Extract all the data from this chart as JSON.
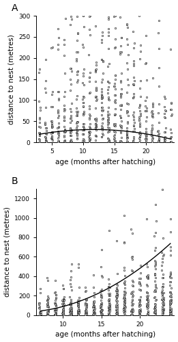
{
  "panel_A": {
    "label": "A",
    "xlim": [
      2.5,
      24.5
    ],
    "ylim": [
      0,
      300
    ],
    "yticks": [
      0,
      50,
      100,
      150,
      200,
      250,
      300
    ],
    "xticks": [
      5,
      10,
      15,
      20
    ],
    "xlabel": "age (months after hatching)",
    "ylabel": "distance to nest (metres)",
    "quad_a": -0.15,
    "quad_b": 3.5,
    "quad_c": 10.0,
    "x_range": [
      3,
      24
    ],
    "months": [
      3,
      4,
      5,
      6,
      7,
      8,
      9,
      10,
      11,
      12,
      13,
      14,
      15,
      16,
      17,
      18,
      19,
      20,
      21,
      22,
      23,
      24
    ],
    "n_per_month": [
      20,
      22,
      25,
      28,
      30,
      32,
      35,
      38,
      35,
      38,
      40,
      42,
      38,
      35,
      32,
      30,
      28,
      25,
      22,
      20,
      18,
      15
    ]
  },
  "panel_B": {
    "label": "B",
    "xlim": [
      6.5,
      24.5
    ],
    "ylim": [
      0,
      1300
    ],
    "yticks": [
      0,
      200,
      400,
      600,
      800,
      1000,
      1200
    ],
    "xticks": [
      10,
      15,
      20
    ],
    "xlabel": "age (months after hatching)",
    "ylabel": "distance to nest (metres)",
    "quad_a": 1.8,
    "quad_b": -15.0,
    "quad_c": 60.0,
    "x_range": [
      7,
      24
    ],
    "months": [
      7,
      8,
      9,
      10,
      11,
      12,
      13,
      14,
      15,
      16,
      17,
      18,
      19,
      20,
      21,
      22,
      23,
      24
    ],
    "n_per_month": [
      15,
      30,
      35,
      40,
      40,
      38,
      35,
      35,
      40,
      42,
      45,
      45,
      38,
      40,
      42,
      45,
      48,
      50
    ],
    "scale_per_month": [
      120,
      130,
      140,
      150,
      160,
      160,
      155,
      155,
      200,
      280,
      300,
      310,
      260,
      320,
      340,
      380,
      400,
      420
    ]
  },
  "dot_color": "#000000",
  "dot_size": 3,
  "dot_marker": "o",
  "dot_facecolor": "white",
  "dot_linewidth": 0.4,
  "dot_jitter": 0.12,
  "line_color": "black",
  "line_width": 1.0,
  "label_fontsize": 7.5,
  "tick_fontsize": 6.5,
  "background_color": "white"
}
